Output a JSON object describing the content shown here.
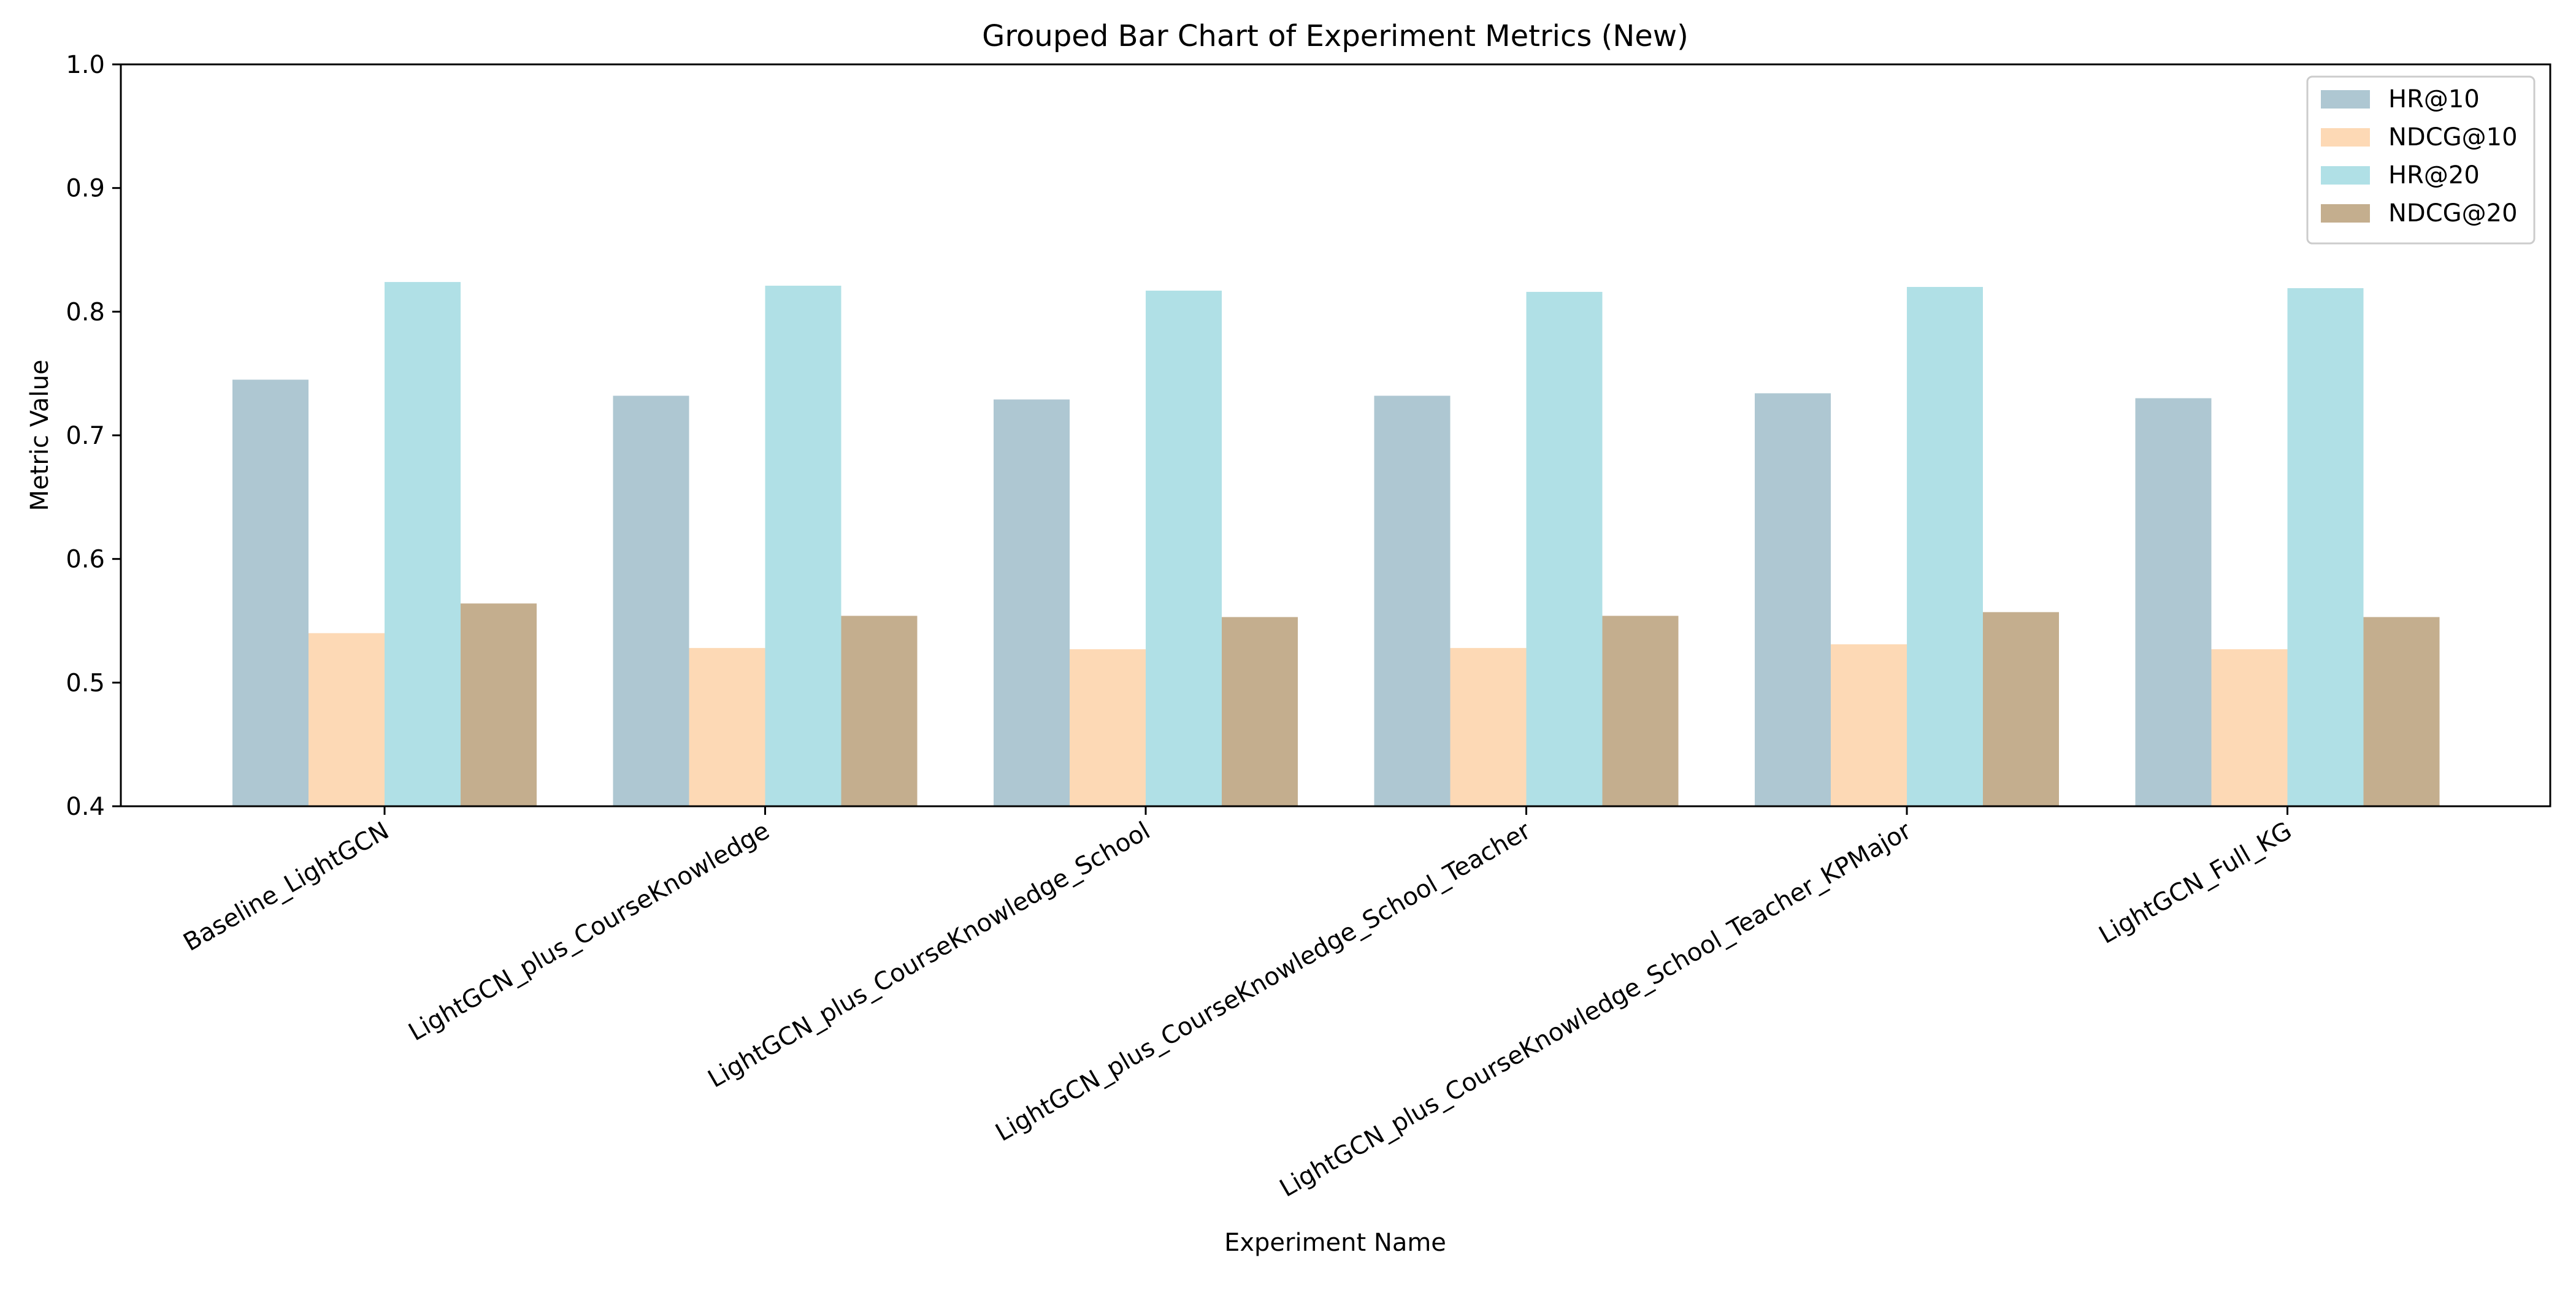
{
  "chart_data": {
    "type": "bar",
    "title": "Grouped Bar Chart of Experiment Metrics (New)",
    "xlabel": "Experiment Name",
    "ylabel": "Metric Value",
    "ylim": [
      0.4,
      1.0
    ],
    "yticks": [
      "0.4",
      "0.5",
      "0.6",
      "0.7",
      "0.8",
      "0.9",
      "1.0"
    ],
    "grid": false,
    "legend_position": "top-right",
    "categories": [
      "Baseline_LightGCN",
      "LightGCN_plus_CourseKnowledge",
      "LightGCN_plus_CourseKnowledge_School",
      "LightGCN_plus_CourseKnowledge_School_Teacher",
      "LightGCN_plus_CourseKnowledge_School_Teacher_KPMajor",
      "LightGCN_Full_KG"
    ],
    "series": [
      {
        "name": "HR@10",
        "color": "#aec7d2",
        "values": [
          0.745,
          0.732,
          0.729,
          0.732,
          0.734,
          0.73
        ]
      },
      {
        "name": "NDCG@10",
        "color": "#fdd9b5",
        "values": [
          0.54,
          0.528,
          0.527,
          0.528,
          0.531,
          0.527
        ]
      },
      {
        "name": "HR@20",
        "color": "#b0e0e6",
        "values": [
          0.824,
          0.821,
          0.817,
          0.816,
          0.82,
          0.819
        ]
      },
      {
        "name": "NDCG@20",
        "color": "#c4ae8e",
        "values": [
          0.564,
          0.554,
          0.553,
          0.554,
          0.557,
          0.553
        ]
      }
    ]
  }
}
